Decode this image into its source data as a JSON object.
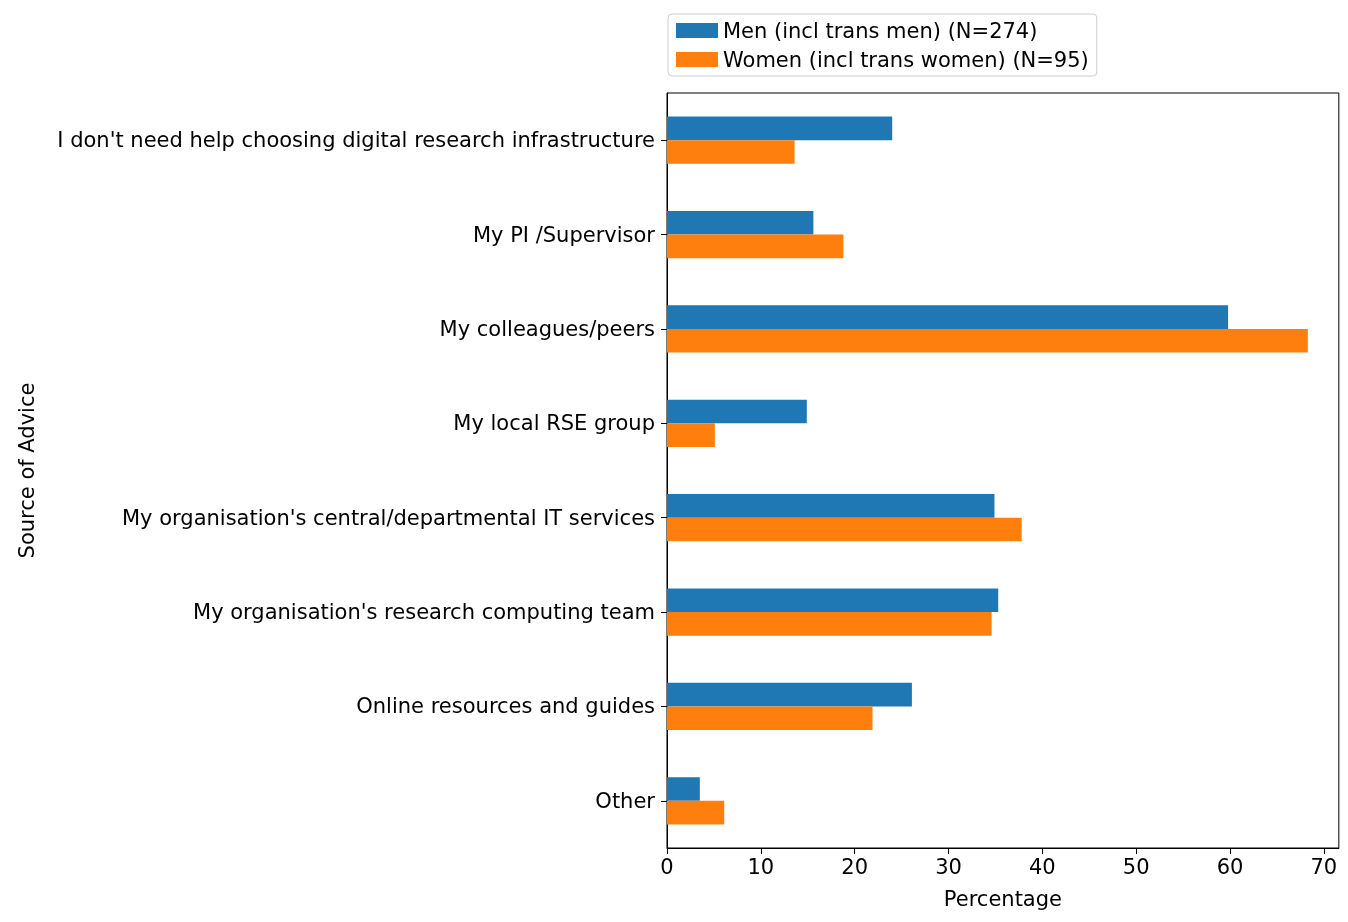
{
  "chart_data": {
    "type": "bar",
    "orientation": "horizontal",
    "xlabel": "Percentage",
    "ylabel": "Source of Advice",
    "categories": [
      "I don't need help choosing digital research infrastructure",
      "My PI /Supervisor",
      "My colleagues/peers",
      "My local RSE group",
      "My organisation's central/departmental IT services",
      "My organisation's research computing team",
      "Online resources and guides",
      "Other"
    ],
    "series": [
      {
        "name": "Men (incl trans men) (N=274)",
        "color": "#1f77b4",
        "values": [
          24.0,
          15.6,
          59.8,
          14.9,
          34.9,
          35.3,
          26.1,
          3.5
        ]
      },
      {
        "name": "Women (incl trans women) (N=95)",
        "color": "#ff7f0e",
        "values": [
          13.6,
          18.8,
          68.3,
          5.1,
          37.8,
          34.6,
          21.9,
          6.1
        ]
      }
    ],
    "xlim": [
      0,
      71.6
    ],
    "xticks": [
      0,
      10,
      20,
      30,
      40,
      50,
      60,
      70
    ],
    "grid": false,
    "legend": "top"
  }
}
